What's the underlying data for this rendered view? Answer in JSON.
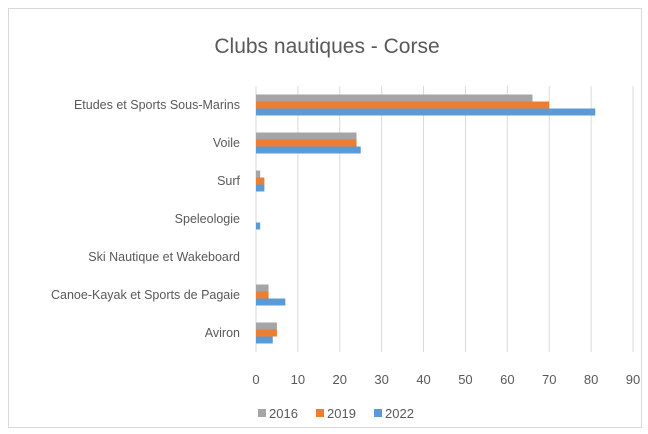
{
  "chart_data": {
    "type": "bar",
    "orientation": "horizontal",
    "title": "Clubs nautiques - Corse",
    "xlabel": "",
    "ylabel": "",
    "categories": [
      "Etudes et Sports Sous-Marins",
      "Voile",
      "Surf",
      "Speleologie",
      "Ski Nautique et Wakeboard",
      "Canoe-Kayak et Sports de Pagaie",
      "Aviron"
    ],
    "series": [
      {
        "name": "2016",
        "color": "#a5a5a5",
        "values": [
          66,
          24,
          1,
          0,
          0,
          3,
          5
        ]
      },
      {
        "name": "2019",
        "color": "#ed7d31",
        "values": [
          70,
          24,
          2,
          0,
          0,
          3,
          5
        ]
      },
      {
        "name": "2022",
        "color": "#5b9bd5",
        "values": [
          81,
          25,
          2,
          1,
          0,
          7,
          4
        ]
      }
    ],
    "xlim": [
      0,
      90
    ],
    "xticks": [
      0,
      10,
      20,
      30,
      40,
      50,
      60,
      70,
      80,
      90
    ],
    "grid": "vertical",
    "legend_position": "bottom"
  }
}
